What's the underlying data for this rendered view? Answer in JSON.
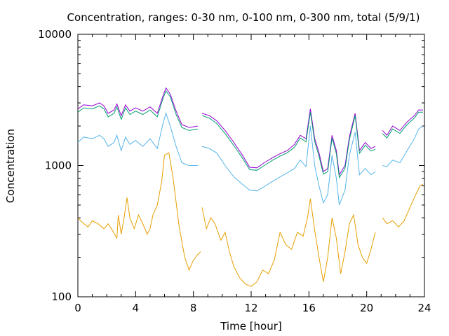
{
  "chart_data": {
    "type": "line",
    "title": "Concentration, ranges: 0-30 nm, 0-100 nm, 0-300 nm, total (5/9/1)",
    "xlabel": "Time [hour]",
    "ylabel": "Concentration",
    "xlim": [
      0,
      24
    ],
    "ylim": [
      100,
      10000
    ],
    "yscale": "log",
    "xticks": [
      "0",
      "4",
      "8",
      "12",
      "16",
      "20",
      "24"
    ],
    "yticks": [
      "100",
      "1000",
      "10000"
    ],
    "grid": false,
    "legend": "none",
    "series": [
      {
        "color": "#9400d3",
        "segments": [
          [
            [
              0,
              2700
            ],
            [
              0.4,
              2900
            ],
            [
              1,
              2850
            ],
            [
              1.5,
              3000
            ],
            [
              1.8,
              2850
            ],
            [
              2.1,
              2500
            ],
            [
              2.5,
              2650
            ],
            [
              2.7,
              2950
            ],
            [
              3,
              2400
            ],
            [
              3.3,
              2900
            ],
            [
              3.6,
              2600
            ],
            [
              4,
              2750
            ],
            [
              4.5,
              2600
            ],
            [
              5,
              2800
            ],
            [
              5.5,
              2500
            ],
            [
              5.9,
              3400
            ],
            [
              6.1,
              3900
            ],
            [
              6.4,
              3500
            ],
            [
              6.8,
              2600
            ],
            [
              7.2,
              2050
            ],
            [
              7.7,
              1950
            ],
            [
              8.3,
              2000
            ]
          ],
          [
            [
              8.6,
              2500
            ],
            [
              9.1,
              2400
            ],
            [
              9.6,
              2200
            ],
            [
              10.2,
              1850
            ],
            [
              10.8,
              1500
            ],
            [
              11.4,
              1200
            ],
            [
              11.9,
              970
            ],
            [
              12.4,
              960
            ],
            [
              12.9,
              1050
            ],
            [
              13.5,
              1150
            ],
            [
              14,
              1230
            ],
            [
              14.5,
              1300
            ],
            [
              15,
              1450
            ],
            [
              15.4,
              1700
            ],
            [
              15.8,
              1600
            ],
            [
              16.1,
              2700
            ],
            [
              16.4,
              1600
            ],
            [
              16.7,
              1250
            ],
            [
              17,
              900
            ],
            [
              17.3,
              950
            ],
            [
              17.6,
              1700
            ],
            [
              17.9,
              1300
            ],
            [
              18.1,
              850
            ],
            [
              18.5,
              1000
            ],
            [
              18.8,
              1650
            ],
            [
              19.2,
              2500
            ],
            [
              19.5,
              1300
            ],
            [
              19.9,
              1500
            ],
            [
              20.3,
              1350
            ],
            [
              20.6,
              1400
            ]
          ],
          [
            [
              21.1,
              1850
            ],
            [
              21.4,
              1700
            ],
            [
              21.8,
              2000
            ],
            [
              22.3,
              1850
            ],
            [
              22.8,
              2150
            ],
            [
              23.3,
              2400
            ],
            [
              23.6,
              2650
            ],
            [
              23.9,
              2650
            ]
          ]
        ]
      },
      {
        "color": "#009e73",
        "segments": [
          [
            [
              0,
              2550
            ],
            [
              0.4,
              2750
            ],
            [
              1,
              2700
            ],
            [
              1.5,
              2850
            ],
            [
              1.8,
              2700
            ],
            [
              2.1,
              2350
            ],
            [
              2.5,
              2500
            ],
            [
              2.7,
              2800
            ],
            [
              3,
              2250
            ],
            [
              3.3,
              2750
            ],
            [
              3.6,
              2450
            ],
            [
              4,
              2600
            ],
            [
              4.5,
              2450
            ],
            [
              5,
              2650
            ],
            [
              5.5,
              2350
            ],
            [
              5.9,
              3250
            ],
            [
              6.1,
              3700
            ],
            [
              6.4,
              3350
            ],
            [
              6.8,
              2450
            ],
            [
              7.2,
              1950
            ],
            [
              7.7,
              1850
            ],
            [
              8.3,
              1900
            ]
          ],
          [
            [
              8.6,
              2400
            ],
            [
              9.1,
              2300
            ],
            [
              9.6,
              2100
            ],
            [
              10.2,
              1750
            ],
            [
              10.8,
              1420
            ],
            [
              11.4,
              1140
            ],
            [
              11.9,
              930
            ],
            [
              12.4,
              920
            ],
            [
              12.9,
              1000
            ],
            [
              13.5,
              1100
            ],
            [
              14,
              1180
            ],
            [
              14.5,
              1250
            ],
            [
              15,
              1380
            ],
            [
              15.4,
              1620
            ],
            [
              15.8,
              1520
            ],
            [
              16.1,
              2550
            ],
            [
              16.4,
              1520
            ],
            [
              16.7,
              1180
            ],
            [
              17,
              860
            ],
            [
              17.3,
              900
            ],
            [
              17.6,
              1620
            ],
            [
              17.9,
              1230
            ],
            [
              18.1,
              810
            ],
            [
              18.5,
              950
            ],
            [
              18.8,
              1570
            ],
            [
              19.2,
              2400
            ],
            [
              19.5,
              1240
            ],
            [
              19.9,
              1430
            ],
            [
              20.3,
              1290
            ],
            [
              20.6,
              1330
            ]
          ],
          [
            [
              21.1,
              1750
            ],
            [
              21.4,
              1620
            ],
            [
              21.8,
              1900
            ],
            [
              22.3,
              1760
            ],
            [
              22.8,
              2050
            ],
            [
              23.3,
              2300
            ],
            [
              23.6,
              2550
            ],
            [
              23.9,
              2550
            ]
          ]
        ]
      },
      {
        "color": "#56b4e9",
        "segments": [
          [
            [
              0,
              1500
            ],
            [
              0.4,
              1650
            ],
            [
              1,
              1600
            ],
            [
              1.5,
              1700
            ],
            [
              1.8,
              1600
            ],
            [
              2.1,
              1400
            ],
            [
              2.5,
              1500
            ],
            [
              2.7,
              1700
            ],
            [
              3,
              1300
            ],
            [
              3.3,
              1650
            ],
            [
              3.6,
              1450
            ],
            [
              4,
              1550
            ],
            [
              4.5,
              1400
            ],
            [
              5,
              1600
            ],
            [
              5.5,
              1350
            ],
            [
              5.9,
              2100
            ],
            [
              6.1,
              2500
            ],
            [
              6.4,
              2000
            ],
            [
              6.8,
              1400
            ],
            [
              7.2,
              1050
            ],
            [
              7.7,
              1000
            ],
            [
              8.3,
              1000
            ]
          ],
          [
            [
              8.6,
              1400
            ],
            [
              9.1,
              1350
            ],
            [
              9.6,
              1250
            ],
            [
              10.2,
              1000
            ],
            [
              10.8,
              820
            ],
            [
              11.4,
              720
            ],
            [
              11.9,
              650
            ],
            [
              12.4,
              640
            ],
            [
              12.9,
              690
            ],
            [
              13.5,
              760
            ],
            [
              14,
              820
            ],
            [
              14.5,
              880
            ],
            [
              15,
              950
            ],
            [
              15.4,
              1100
            ],
            [
              15.8,
              980
            ],
            [
              16.1,
              2000
            ],
            [
              16.4,
              1000
            ],
            [
              16.7,
              700
            ],
            [
              17,
              520
            ],
            [
              17.3,
              600
            ],
            [
              17.6,
              1200
            ],
            [
              17.9,
              800
            ],
            [
              18.1,
              500
            ],
            [
              18.5,
              650
            ],
            [
              18.8,
              1200
            ],
            [
              19.2,
              1800
            ],
            [
              19.5,
              850
            ],
            [
              19.9,
              950
            ],
            [
              20.3,
              850
            ],
            [
              20.6,
              900
            ]
          ],
          [
            [
              21.1,
              1000
            ],
            [
              21.4,
              980
            ],
            [
              21.8,
              1100
            ],
            [
              22.3,
              1050
            ],
            [
              22.8,
              1300
            ],
            [
              23.3,
              1600
            ],
            [
              23.6,
              1900
            ],
            [
              23.9,
              2000
            ]
          ]
        ]
      },
      {
        "color": "#e69f00",
        "segments": [
          [
            [
              0,
              400
            ],
            [
              0.3,
              370
            ],
            [
              0.7,
              340
            ],
            [
              1,
              380
            ],
            [
              1.4,
              360
            ],
            [
              1.8,
              330
            ],
            [
              2.1,
              360
            ],
            [
              2.4,
              320
            ],
            [
              2.7,
              280
            ],
            [
              2.8,
              420
            ],
            [
              3,
              300
            ],
            [
              3.2,
              400
            ],
            [
              3.4,
              570
            ],
            [
              3.6,
              400
            ],
            [
              3.9,
              330
            ],
            [
              4.2,
              420
            ],
            [
              4.5,
              360
            ],
            [
              4.8,
              300
            ],
            [
              5,
              330
            ],
            [
              5.2,
              420
            ],
            [
              5.5,
              500
            ],
            [
              5.8,
              750
            ],
            [
              6,
              1200
            ],
            [
              6.3,
              1250
            ],
            [
              6.6,
              800
            ],
            [
              7,
              350
            ],
            [
              7.4,
              200
            ],
            [
              7.7,
              160
            ],
            [
              8,
              190
            ],
            [
              8.3,
              210
            ],
            [
              8.5,
              220
            ]
          ],
          [
            [
              8.6,
              480
            ],
            [
              8.9,
              330
            ],
            [
              9.2,
              400
            ],
            [
              9.5,
              360
            ],
            [
              9.9,
              270
            ],
            [
              10.2,
              310
            ],
            [
              10.5,
              220
            ],
            [
              10.8,
              170
            ],
            [
              11.2,
              140
            ],
            [
              11.6,
              125
            ],
            [
              12,
              120
            ],
            [
              12.4,
              130
            ],
            [
              12.8,
              160
            ],
            [
              13.2,
              150
            ],
            [
              13.6,
              190
            ],
            [
              14,
              310
            ],
            [
              14.4,
              250
            ],
            [
              14.8,
              230
            ],
            [
              15.2,
              310
            ],
            [
              15.6,
              290
            ],
            [
              15.9,
              400
            ],
            [
              16.1,
              560
            ],
            [
              16.4,
              320
            ],
            [
              16.7,
              200
            ],
            [
              17,
              130
            ],
            [
              17.3,
              200
            ],
            [
              17.6,
              400
            ],
            [
              17.9,
              280
            ],
            [
              18.2,
              150
            ],
            [
              18.5,
              220
            ],
            [
              18.8,
              360
            ],
            [
              19.1,
              420
            ],
            [
              19.4,
              250
            ],
            [
              19.7,
              200
            ],
            [
              20,
              180
            ],
            [
              20.3,
              230
            ],
            [
              20.6,
              310
            ]
          ],
          [
            [
              21.1,
              400
            ],
            [
              21.4,
              360
            ],
            [
              21.8,
              380
            ],
            [
              22.2,
              340
            ],
            [
              22.6,
              380
            ],
            [
              23,
              480
            ],
            [
              23.4,
              600
            ],
            [
              23.7,
              700
            ],
            [
              23.9,
              720
            ]
          ]
        ]
      }
    ]
  }
}
